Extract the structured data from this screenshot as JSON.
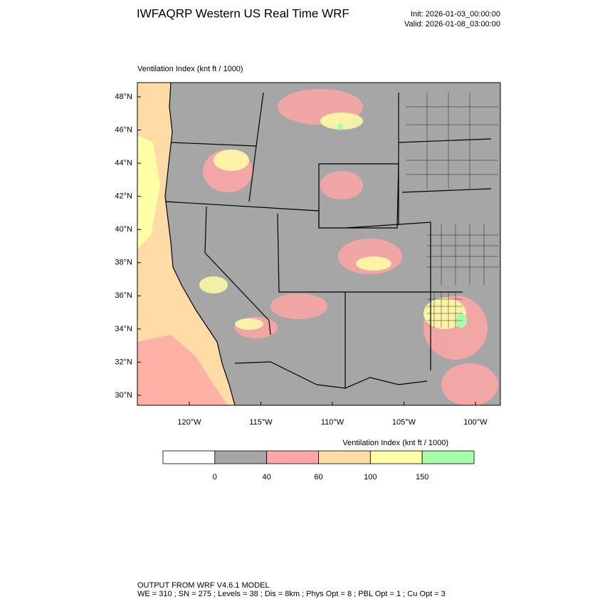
{
  "header": {
    "title": "IWFAQRP Western US Real Time WRF",
    "init": "Init: 2026-01-03_00:00:00",
    "valid": "Valid: 2026-01-08_03:00:00"
  },
  "plot": {
    "label": "Ventilation Index   (knt ft / 1000)",
    "lat_labels": [
      "48°N",
      "46°N",
      "44°N",
      "42°N",
      "40°N",
      "38°N",
      "36°N",
      "34°N",
      "32°N",
      "30°N"
    ],
    "lon_labels": [
      "120°W",
      "115°W",
      "110°W",
      "105°W",
      "100°W"
    ]
  },
  "colorbar": {
    "title": "Ventilation Index   (knt ft / 1000)",
    "colors": [
      "#ffffff",
      "#a6a6a6",
      "#ffa6a6",
      "#ffdca6",
      "#ffffa6",
      "#a6ffa6"
    ],
    "labels": [
      "0",
      "40",
      "60",
      "100",
      "150"
    ]
  },
  "footer": {
    "line1": "OUTPUT FROM WRF V4.6.1 MODEL",
    "line2": "WE = 310 ; SN = 275 ; Levels = 38 ; Dis = 8km ; Phys Opt = 8 ; PBL Opt = 1 ; Cu Opt = 3"
  }
}
